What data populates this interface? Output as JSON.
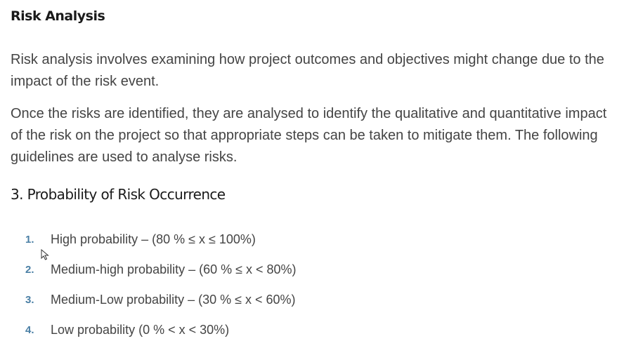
{
  "section_title": "Risk Analysis",
  "paragraphs": [
    "Risk analysis involves examining how project outcomes and objectives might change due to the impact of the risk event.",
    "Once the risks are identified, they are analysed to identify the qualitative and quantitative impact of the risk on the project so that appropriate steps can be taken to mitigate them. The following guidelines are used to analyse risks."
  ],
  "subsection_title": "3. Probability of Risk Occurrence",
  "probability_list": [
    {
      "marker": "1.",
      "text": "High probability – (80 % ≤ x ≤ 100%)"
    },
    {
      "marker": "2.",
      "text": "Medium-high probability – (60 % ≤ x < 80%)"
    },
    {
      "marker": "3.",
      "text": "Medium-Low probability – (30 % ≤ x < 60%)"
    },
    {
      "marker": "4.",
      "text": "Low probability (0 % < x < 30%)"
    }
  ],
  "colors": {
    "heading": "#1a1a1a",
    "body_text": "#444444",
    "list_marker": "#4a7fa5"
  },
  "icons": {
    "cursor": "mouse-pointer-icon"
  }
}
